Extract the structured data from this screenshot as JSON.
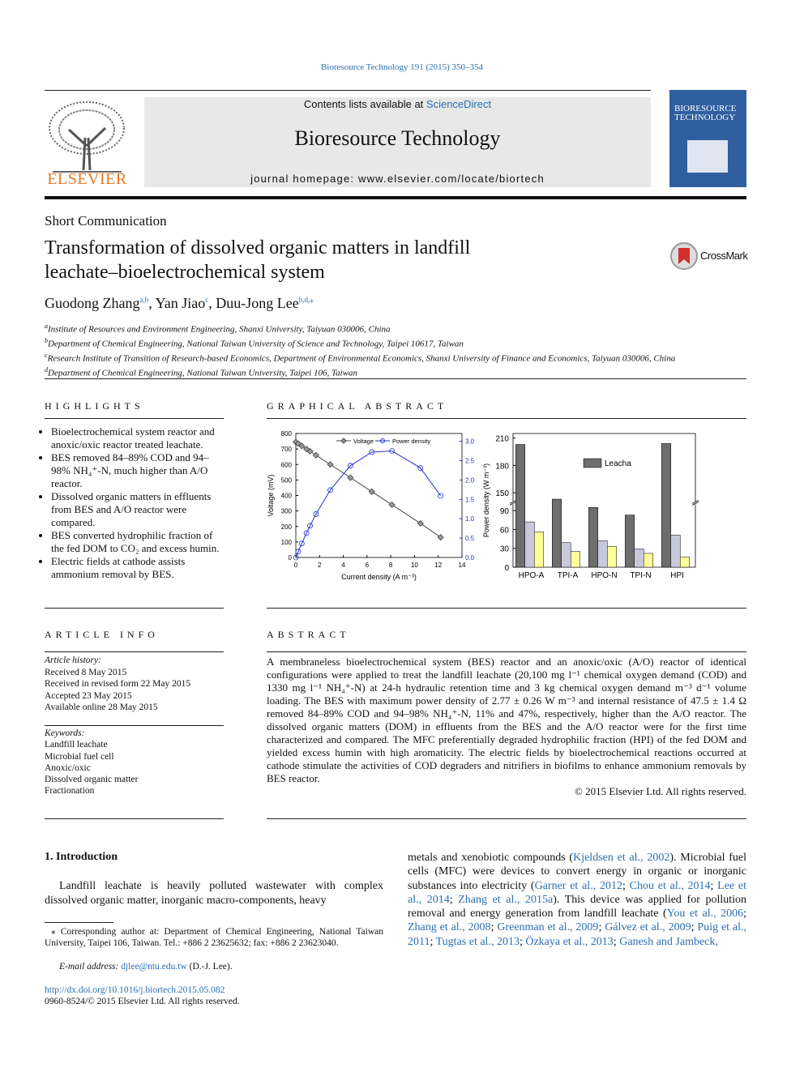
{
  "header": {
    "citation": "Bioresource Technology 191 (2015) 350–354",
    "contents": [
      "Contents lists available at ",
      {
        "link": "ScienceDirect"
      }
    ],
    "journal": "Bioresource Technology",
    "homepage": "journal homepage: www.elsevier.com/locate/biortech",
    "publisher": "ELSEVIER",
    "cover_title": "BIORESOURCE TECHNOLOGY",
    "crossmark": "CrossMark"
  },
  "article_type": "Short Communication",
  "title": "Transformation of dissolved organic matters in landfill leachate–bioelectrochemical system",
  "authors": [
    "Guodong Zhang",
    {
      "sup": "a,b"
    },
    ", Yan Jiao",
    {
      "sup": "c"
    },
    ", Duu-Jong Lee",
    {
      "sup": "b,d,⁎"
    }
  ],
  "affiliations": [
    {
      "mark": "a",
      "text": "Institute of Resources and Environment Engineering, Shanxi University, Taiyuan 030006, China"
    },
    {
      "mark": "b",
      "text": "Department of Chemical Engineering, National Taiwan University of Science and Technology, Taipei 10617, Taiwan"
    },
    {
      "mark": "c",
      "text": "Research Institute of Transition of Research-based Economics, Department of Environmental Economics, Shanxi University of Finance and Economics, Taiyuan 030006, China"
    },
    {
      "mark": "d",
      "text": "Department of Chemical Engineering, National Taiwan University, Taipei 106, Taiwan"
    }
  ],
  "highlights": {
    "heading": "HIGHLIGHTS",
    "items": [
      "Bioelectrochemical system reactor and anoxic/oxic reactor treated leachate.",
      "BES removed 84–89% COD and 94–98% NH₄⁺-N, much higher than A/O reactor.",
      "Dissolved organic matters in effluents from BES and A/O reactor were compared.",
      "BES converted hydrophilic fraction of the fed DOM to CO₂ and excess humin.",
      "Electric fields at cathode assists ammonium removal by BES."
    ]
  },
  "graphical_abstract": {
    "heading": "GRAPHICAL ABSTRACT"
  },
  "article_info": {
    "heading": "ARTICLE INFO",
    "history_heading": "Article history:",
    "history": [
      "Received 8 May 2015",
      "Received in revised form 22 May 2015",
      "Accepted 23 May 2015",
      "Available online 28 May 2015"
    ],
    "keywords_heading": "Keywords:",
    "keywords": [
      "Landfill leachate",
      "Microbial fuel cell",
      "Anoxic/oxic",
      "Dissolved organic matter",
      "Fractionation"
    ]
  },
  "abstract": {
    "heading": "ABSTRACT",
    "text": "A membraneless bioelectrochemical system (BES) reactor and an anoxic/oxic (A/O) reactor of identical configurations were applied to treat the landfill leachate (20,100 mg l⁻¹ chemical oxygen demand (COD) and 1330 mg l⁻¹ NH₄⁺-N) at 24-h hydraulic retention time and 3 kg chemical oxygen demand m⁻³ d⁻¹ volume loading. The BES with maximum power density of 2.77 ± 0.26 W m⁻³ and internal resistance of 47.5 ± 1.4 Ω removed 84–89% COD and 94–98% NH₄⁺-N, 11% and 47%, respectively, higher than the A/O reactor. The dissolved organic matters (DOM) in effluents from the BES and the A/O reactor were for the first time characterized and compared. The MFC preferentially degraded hydrophilic fraction (HPI) of the fed DOM and yielded excess humin with high aromaticity. The electric fields by bioelectrochemical reactions occurred at cathode stimulate the activities of COD degraders and nitrifiers in biofilms to enhance ammonium removals by BES reactor.",
    "copyright": "© 2015 Elsevier Ltd. All rights reserved."
  },
  "introduction": {
    "heading": "1. Introduction",
    "left": "Landfill leachate is heavily polluted wastewater with complex dissolved organic matter, inorganic macro-components, heavy",
    "right": [
      "metals and xenobiotic compounds (",
      {
        "cite": "Kjeldsen et al., 2002"
      },
      "). Microbial fuel cells (MFC) were devices to convert energy in organic or inorganic substances into electricity (",
      {
        "cite": "Garner et al., 2012"
      },
      "; ",
      {
        "cite": "Chou et al., 2014"
      },
      "; ",
      {
        "cite": "Lee et al., 2014"
      },
      "; ",
      {
        "cite": "Zhang et al., 2015a"
      },
      "). This device was applied for pollution removal and energy generation from landfill leachate (",
      {
        "cite": "You et al., 2006"
      },
      "; ",
      {
        "cite": "Zhang et al., 2008"
      },
      "; ",
      {
        "cite": "Greenman et al., 2009"
      },
      "; ",
      {
        "cite": "Gálvez et al., 2009"
      },
      "; ",
      {
        "cite": "Puig et al., 2011"
      },
      "; ",
      {
        "cite": "Tugtas et al., 2013"
      },
      "; ",
      {
        "cite": "Özkaya et al., 2013"
      },
      "; ",
      {
        "cite": "Ganesh and Jambeck,"
      }
    ]
  },
  "footnote": {
    "corresponding": "⁎ Corresponding author at: Department of Chemical Engineering, National Taiwan University, Taipei 106, Taiwan. Tel.: +886 2 23625632; fax: +886 2 23623040.",
    "email": [
      {
        "i": "E-mail address: "
      },
      {
        "link": "djlee@ntu.edu.tw"
      },
      " (D.-J. Lee)."
    ]
  },
  "footer": {
    "doi": "http://dx.doi.org/10.1016/j.biortech.2015.05.082",
    "issn": "0960-8524/© 2015 Elsevier Ltd. All rights reserved."
  },
  "chart_data": [
    {
      "type": "line",
      "xlabel": "Current density (A m⁻³)",
      "ylabel": "Voltage (mV)",
      "x": [
        0,
        0.2,
        0.5,
        0.9,
        1.2,
        1.7,
        2.9,
        4.6,
        6.4,
        8.1,
        10.5,
        12.2
      ],
      "series": [
        {
          "name": "Voltage",
          "color": "#444444",
          "marker": "diamond",
          "values": [
            745,
            735,
            720,
            700,
            685,
            660,
            600,
            515,
            425,
            340,
            220,
            130
          ]
        },
        {
          "name": "Power density",
          "color": "#2233cc",
          "marker": "circle",
          "axis": "y2",
          "values": [
            0,
            0.15,
            0.36,
            0.63,
            0.82,
            1.12,
            1.74,
            2.37,
            2.72,
            2.75,
            2.31,
            1.59
          ]
        }
      ],
      "xlim": [
        0,
        14
      ],
      "xticks": [
        0,
        2,
        4,
        6,
        8,
        10,
        12,
        14
      ],
      "ylim": [
        0,
        800
      ],
      "yticks": [
        0,
        100,
        200,
        300,
        400,
        500,
        600,
        700,
        800
      ],
      "y2lim": [
        0,
        3.2
      ],
      "y2ticks": [
        {
          "value": 0,
          "label": "0.0"
        },
        0.5,
        {
          "value": 1,
          "label": "1.0"
        },
        1.5,
        {
          "value": 2,
          "label": "2.0"
        },
        2.5,
        {
          "value": 3,
          "label": "3.0"
        }
      ],
      "legend": "top"
    },
    {
      "type": "bar",
      "ylabel": "Power density (W m⁻³)",
      "categories": [
        "HPO-A",
        "TPI-A",
        "HPO-N",
        "TPI-N",
        "HPI"
      ],
      "series": [
        {
          "name": "Leacha",
          "color": "#6e6e6e",
          "values": [
            203,
            143,
            95,
            83,
            204
          ]
        },
        {
          "color": "#c8c8dc",
          "values": [
            72,
            39,
            42,
            29,
            51
          ]
        },
        {
          "color": "#ffff99",
          "values": [
            56,
            25,
            33,
            22,
            16
          ]
        }
      ],
      "ylim": [
        0,
        215
      ],
      "ybreak": [
        100,
        140
      ],
      "yticks": [
        0,
        30,
        60,
        90,
        150,
        180,
        210
      ],
      "legend": "top-right"
    }
  ]
}
